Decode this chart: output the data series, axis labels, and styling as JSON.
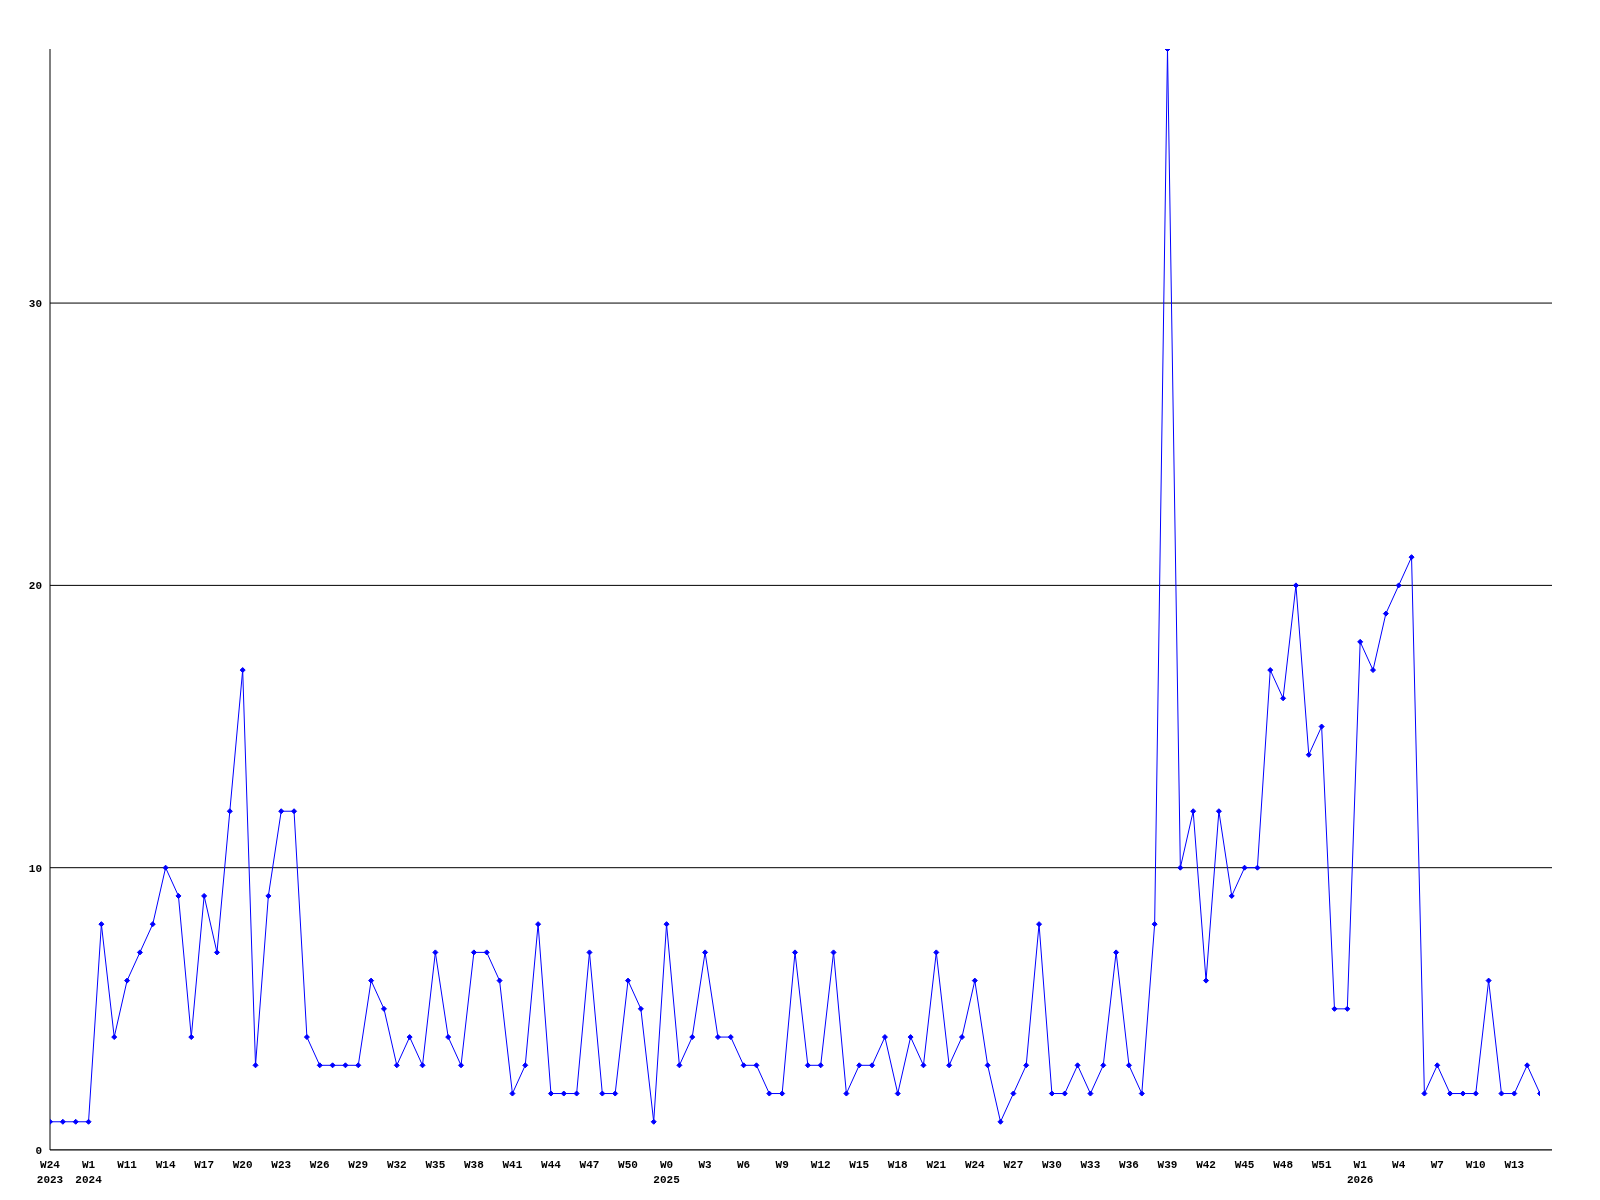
{
  "chart_data": {
    "type": "line",
    "categories": [
      "W24\n2023",
      null,
      null,
      "W1\n2024",
      null,
      null,
      "W11",
      null,
      null,
      "W14",
      null,
      null,
      "W17",
      null,
      null,
      "W20",
      null,
      null,
      "W23",
      null,
      null,
      "W26",
      null,
      null,
      "W29",
      null,
      null,
      "W32",
      null,
      null,
      "W35",
      null,
      null,
      "W38",
      null,
      null,
      "W41",
      null,
      null,
      "W44",
      null,
      null,
      "W47",
      null,
      null,
      "W50",
      null,
      null,
      "W0\n2025",
      null,
      null,
      "W3",
      null,
      null,
      "W6",
      null,
      null,
      "W9",
      null,
      null,
      "W12",
      null,
      null,
      "W15",
      null,
      null,
      "W18",
      null,
      null,
      "W21",
      null,
      null,
      "W24",
      null,
      null,
      "W27",
      null,
      null,
      "W30",
      null,
      null,
      "W33",
      null,
      null,
      "W36",
      null,
      null,
      "W39",
      null,
      null,
      "W42",
      null,
      null,
      "W45",
      null,
      null,
      "W48",
      null,
      null,
      "W51",
      null,
      null,
      "W1\n2026",
      null,
      null,
      "W4",
      null,
      null,
      "W7",
      null,
      null,
      "W10",
      null,
      null,
      "W13",
      null,
      null
    ],
    "series": [
      {
        "color": "#0000ff",
        "values": [
          1,
          1,
          1,
          1,
          8,
          4,
          6,
          7,
          8,
          10,
          9,
          4,
          9,
          7,
          12,
          17,
          3,
          9,
          12,
          12,
          4,
          3,
          3,
          3,
          3,
          6,
          5,
          3,
          4,
          3,
          7,
          4,
          3,
          7,
          7,
          6,
          2,
          3,
          8,
          2,
          2,
          2,
          7,
          2,
          2,
          6,
          5,
          1,
          8,
          3,
          4,
          7,
          4,
          4,
          3,
          3,
          2,
          2,
          7,
          3,
          3,
          7,
          2,
          3,
          3,
          4,
          2,
          4,
          3,
          7,
          3,
          4,
          6,
          3,
          1,
          2,
          3,
          8,
          2,
          2,
          3,
          2,
          3,
          7,
          3,
          2,
          8,
          39,
          10,
          12,
          6,
          12,
          9,
          10,
          10,
          17,
          16,
          20,
          14,
          15,
          5,
          5,
          18,
          17,
          19,
          20,
          21,
          2,
          3,
          2,
          2,
          2,
          6,
          2,
          2,
          3,
          2
        ]
      }
    ],
    "ylim": [
      0,
      39
    ],
    "yticks": [
      0,
      10,
      20,
      30
    ],
    "grid": "y",
    "marker": "diamond",
    "line_style": "solid"
  }
}
